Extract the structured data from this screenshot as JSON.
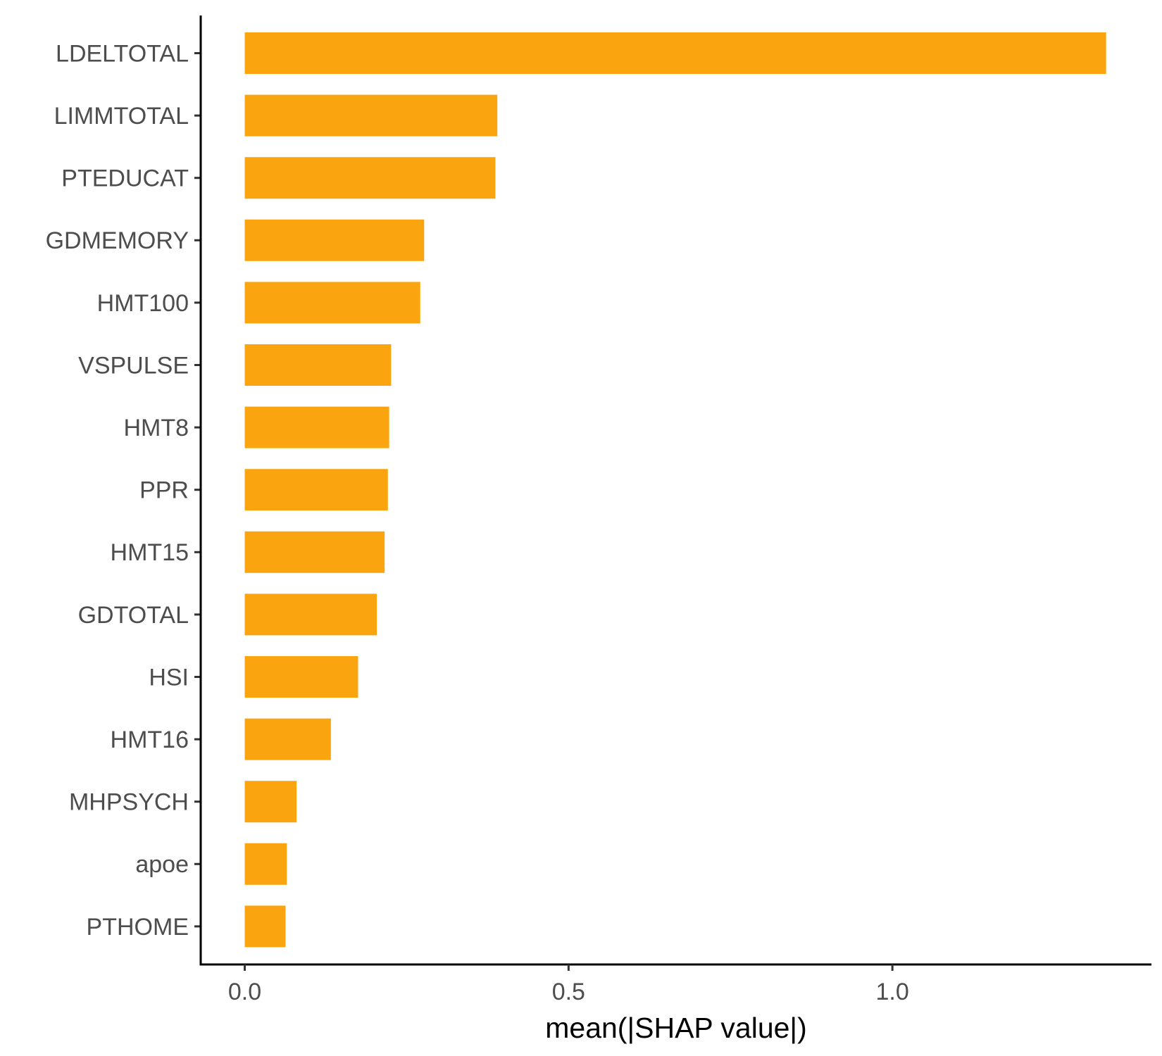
{
  "chart_data": {
    "type": "bar",
    "orientation": "horizontal",
    "categories": [
      "LDELTOTAL",
      "LIMMTOTAL",
      "PTEDUCAT",
      "GDMEMORY",
      "HMT100",
      "VSPULSE",
      "HMT8",
      "PPR",
      "HMT15",
      "GDTOTAL",
      "HSI",
      "HMT16",
      "MHPSYCH",
      "apoe",
      "PTHOME"
    ],
    "values": [
      1.33,
      0.39,
      0.387,
      0.277,
      0.271,
      0.226,
      0.223,
      0.221,
      0.216,
      0.204,
      0.175,
      0.133,
      0.08,
      0.065,
      0.063
    ],
    "xlabel": "mean(|SHAP value|)",
    "ylabel": "",
    "title": "",
    "xlim": [
      -0.068,
      1.4
    ],
    "x_ticks": [
      "0.0",
      "0.5",
      "1.0"
    ],
    "x_tick_values": [
      0,
      0.5,
      1.0
    ],
    "bar_color": "#FAA50F",
    "grid": false,
    "legend": "none"
  }
}
